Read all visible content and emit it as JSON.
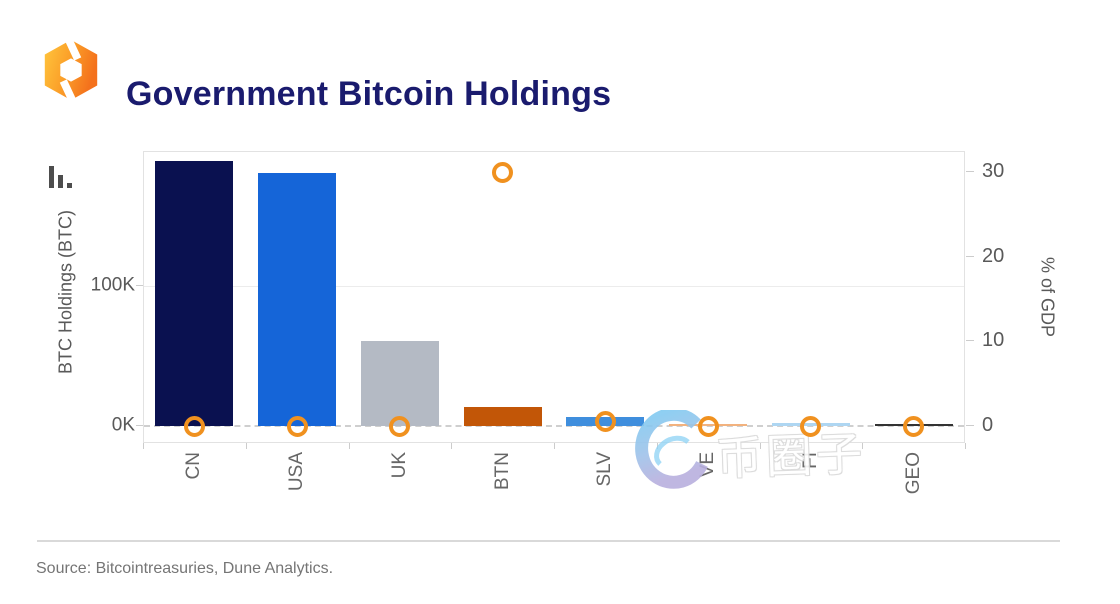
{
  "header": {
    "title": "Government Bitcoin Holdings",
    "logo_icon": "hexagon-brand-logo",
    "title_color": "#1a1b6e"
  },
  "chart": {
    "type_icon": "bar-chart-icon",
    "watermark_text": "币圈子",
    "frame_color": "#e2e2e2",
    "marker_color": "#f0911f"
  },
  "chart_data": {
    "type": "bar",
    "title": "Government Bitcoin Holdings",
    "categories": [
      "CN",
      "USA",
      "UK",
      "BTN",
      "SLV",
      "VE",
      "FI",
      "GEO"
    ],
    "series": [
      {
        "name": "BTC Holdings (BTC)",
        "type": "bar",
        "axis": "left",
        "values": [
          189000,
          181000,
          61000,
          13500,
          6400,
          240,
          1900,
          66
        ],
        "colors": [
          "#0a1150",
          "#1565d8",
          "#b4bac4",
          "#c25607",
          "#3f8edd",
          "#f2b27e",
          "#aed6f2",
          "#333333"
        ]
      },
      {
        "name": "% of GDP",
        "type": "scatter",
        "axis": "right",
        "marker": "open-circle",
        "color": "#f0911f",
        "values": [
          0,
          0,
          0,
          30,
          0.5,
          0,
          0,
          0
        ]
      }
    ],
    "left_axis": {
      "label": "BTC Holdings (BTC)",
      "tick_labels": [
        "0K",
        "100K"
      ],
      "tick_values": [
        0,
        100000
      ],
      "range": [
        0,
        196000
      ]
    },
    "right_axis": {
      "label": "% of GDP",
      "tick_labels": [
        "0",
        "10",
        "20",
        "30"
      ],
      "tick_values": [
        0,
        10,
        20,
        30
      ],
      "range": [
        0,
        32.5
      ]
    },
    "grid": "single horizontal gridline at 100K; dashed zero baseline",
    "legend": "none"
  },
  "footer": {
    "source": "Source: Bitcointreasuries, Dune Analytics."
  }
}
